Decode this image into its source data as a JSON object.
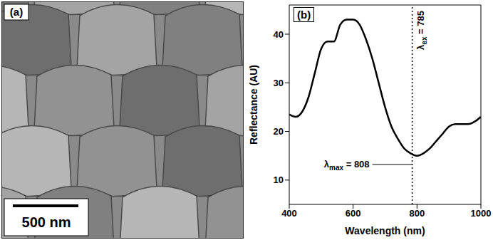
{
  "panel_a": {
    "label": "(a)",
    "scale_bar": "500 nm"
  },
  "chart_data": {
    "type": "line",
    "panel_label": "(b)",
    "x_label": "Wavelength (nm)",
    "y_label": "Reflectance (AU)",
    "x": [
      400,
      420,
      440,
      460,
      480,
      500,
      520,
      540,
      560,
      580,
      600,
      620,
      640,
      660,
      680,
      700,
      720,
      740,
      760,
      780,
      800,
      820,
      840,
      860,
      880,
      900,
      920,
      940,
      960,
      980,
      1000
    ],
    "values": [
      23.5,
      23,
      24,
      27,
      32,
      37,
      38.5,
      38.5,
      42,
      43,
      43,
      42,
      39,
      35,
      30,
      25,
      21,
      18.5,
      16.5,
      15.5,
      15,
      15.5,
      16.5,
      18,
      19.5,
      21,
      21.5,
      21.5,
      21.5,
      22,
      23
    ],
    "color": "#000000",
    "line_style": "solid",
    "xlim": [
      400,
      1000
    ],
    "xticks": [
      400,
      600,
      800,
      1000
    ],
    "ylim": [
      5,
      46
    ],
    "yticks": [
      10,
      20,
      30,
      40
    ],
    "vline": 785,
    "annotations": [
      "λex = 785",
      "λmax = 808"
    ]
  }
}
